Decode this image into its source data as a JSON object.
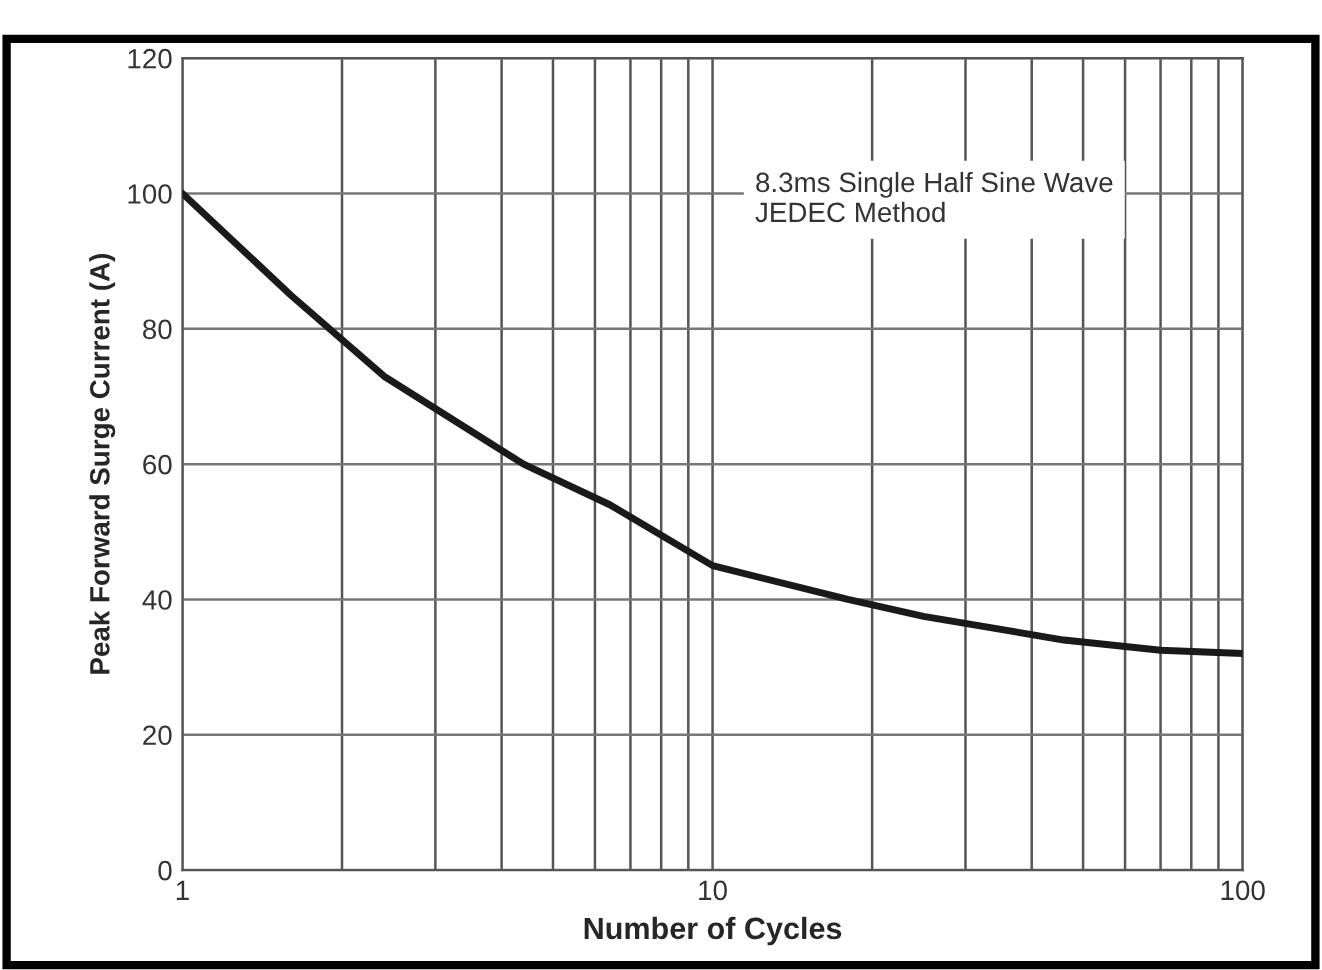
{
  "chart_data": {
    "type": "line",
    "xlabel": "Number of Cycles",
    "ylabel": "Peak Forward Surge Current (A)",
    "x": [
      1,
      1.6,
      2.4,
      4.4,
      6.4,
      10,
      18,
      25,
      46,
      70,
      100
    ],
    "series": [
      {
        "color": "#1a1a1a",
        "values": [
          100,
          85,
          73,
          60,
          54,
          45,
          40,
          37.5,
          34,
          32.5,
          32
        ]
      }
    ],
    "xlim": [
      1,
      100
    ],
    "ylim": [
      0,
      120
    ],
    "xticks": [
      1,
      10,
      100
    ],
    "yticks": [
      0,
      20,
      40,
      60,
      80,
      100,
      120
    ],
    "log": "x",
    "grid": true,
    "marker": "none",
    "line_style": "solid",
    "annotations": [
      "8.3ms Single Half Sine Wave\nJEDEC Method"
    ]
  }
}
